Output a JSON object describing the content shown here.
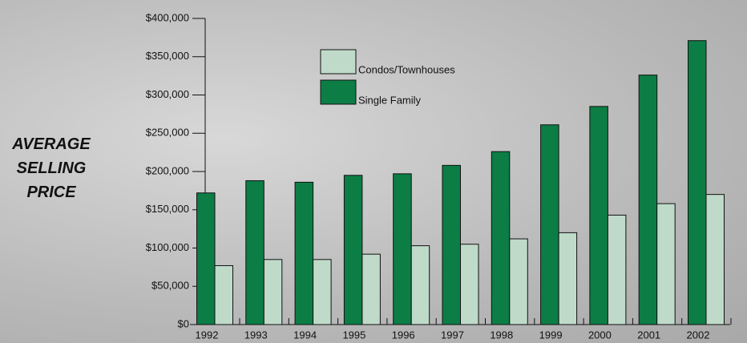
{
  "chart_data": {
    "type": "bar",
    "y_label": "AVERAGE SELLING PRICE",
    "categories": [
      "1992",
      "1993",
      "1994",
      "1995",
      "1996",
      "1997",
      "1998",
      "1999",
      "2000",
      "2001",
      "2002"
    ],
    "series": [
      {
        "name": "Condos/Townhouses",
        "color": "#bfdac9",
        "values": [
          77000,
          85000,
          85000,
          92000,
          103000,
          105000,
          112000,
          120000,
          143000,
          158000,
          170000
        ]
      },
      {
        "name": "Single Family",
        "color": "#0c7d45",
        "values": [
          172000,
          188000,
          186000,
          195000,
          197000,
          208000,
          226000,
          261000,
          285000,
          326000,
          371000
        ]
      }
    ],
    "ylim": [
      0,
      400000
    ],
    "yticks": [
      {
        "value": 0,
        "label": "$0"
      },
      {
        "value": 50000,
        "label": "$50,000"
      },
      {
        "value": 100000,
        "label": "$100,000"
      },
      {
        "value": 150000,
        "label": "$150,000"
      },
      {
        "value": 200000,
        "label": "$200,000"
      },
      {
        "value": 250000,
        "label": "$250,000"
      },
      {
        "value": 300000,
        "label": "$300,000"
      },
      {
        "value": 350000,
        "label": "$350,000"
      },
      {
        "value": 400000,
        "label": "$400,000"
      }
    ]
  }
}
